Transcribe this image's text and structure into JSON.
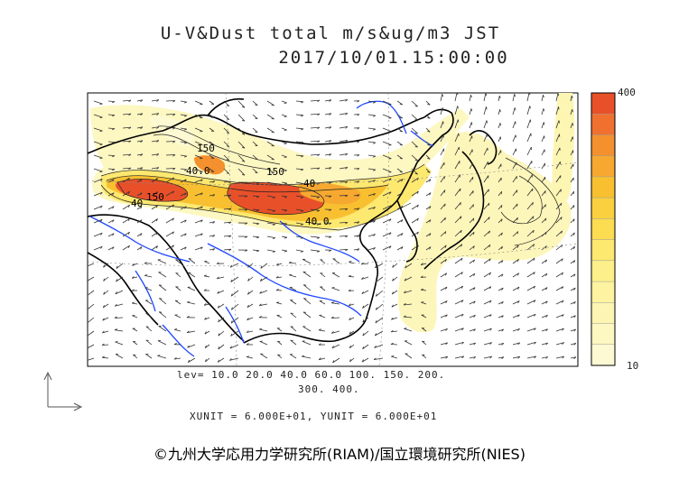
{
  "title_line1": "U-V&Dust total m/s&ug/m3 JST",
  "title_line2": "2017/10/01.15:00:00",
  "contour_levels_line1": "lev= 10.0 20.0 40.0 60.0 100. 150. 200.",
  "contour_levels_line2": "300. 400.",
  "units_line": "XUNIT = 6.000E+01, YUNIT = 6.000E+01",
  "credit": "©九州大学応用力学研究所(RIAM)/国立環境研究所(NIES)",
  "colorbar": {
    "max_label": "400",
    "min_label": "10",
    "colors": [
      "#e8502a",
      "#f07030",
      "#f4902e",
      "#f6a830",
      "#f8c030",
      "#fad040",
      "#fcdc50",
      "#fde870",
      "#fdf08a",
      "#fdf3a0",
      "#fdf5b2",
      "#fdf7c2",
      "#fdf9d2"
    ]
  },
  "map_labels": [
    {
      "id": "lbl-150a",
      "text": "150"
    },
    {
      "id": "lbl-40a",
      "text": "40"
    },
    {
      "id": "lbl-40b",
      "text": "40"
    },
    {
      "id": "lbl-150b",
      "text": "150"
    },
    {
      "id": "lbl-40c",
      "text": "40.0"
    },
    {
      "id": "lbl-40d",
      "text": "40.0"
    },
    {
      "id": "lbl-150c",
      "text": "150"
    }
  ],
  "colors": {
    "land_line": "#000000",
    "river": "#1e46ff",
    "dust_high": "#e8502a",
    "dust_low": "#fdf7c2"
  },
  "icons": {
    "axes_indicator": "axes-arrow-icon"
  }
}
